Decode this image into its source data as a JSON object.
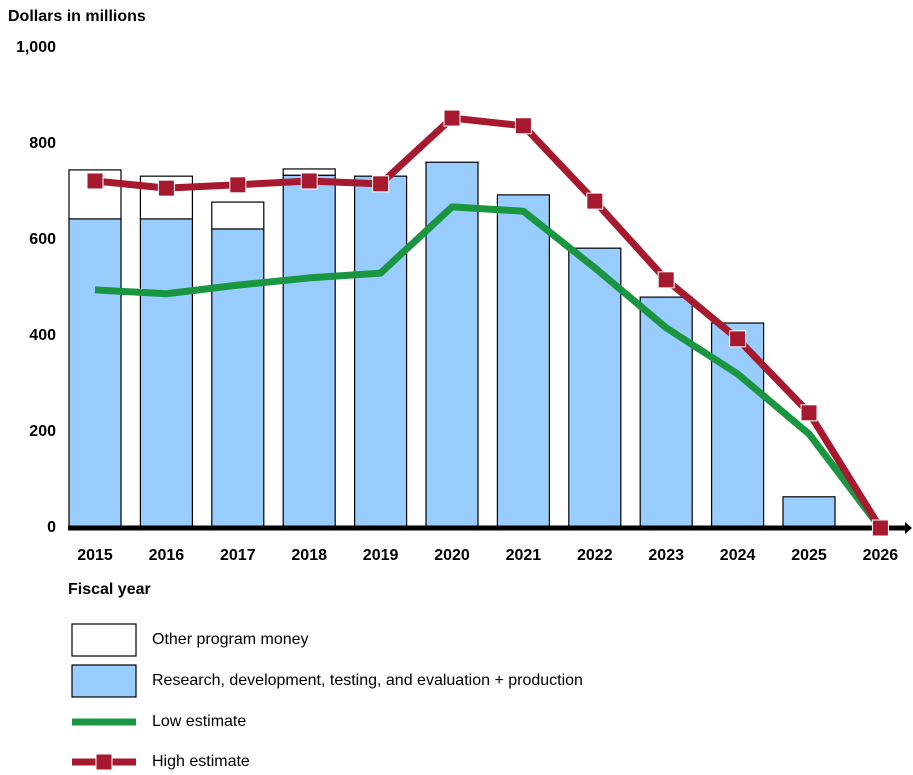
{
  "chart_data": {
    "type": "bar",
    "y_axis_label": "Dollars in millions",
    "x_axis_label": "Fiscal year",
    "categories": [
      "2015",
      "2016",
      "2017",
      "2018",
      "2019",
      "2020",
      "2021",
      "2022",
      "2023",
      "2024",
      "2025",
      "2026"
    ],
    "series": [
      {
        "name": "Other program money",
        "type": "bar",
        "color": "#ffffff",
        "values": [
          102,
          89,
          56,
          13,
          0,
          0,
          0,
          0,
          0,
          0,
          0,
          0
        ]
      },
      {
        "name": "Research, development, testing, and evaluation + production",
        "type": "bar",
        "color": "#99ccff",
        "values": [
          644,
          644,
          623,
          735,
          733,
          762,
          694,
          583,
          481,
          427,
          65,
          0
        ]
      },
      {
        "name": "Low estimate",
        "type": "line",
        "color": "#1a9641",
        "values": [
          496,
          488,
          506,
          521,
          531,
          669,
          660,
          542,
          417,
          321,
          196,
          0
        ]
      },
      {
        "name": "High estimate",
        "type": "line",
        "color": "#a6192e",
        "marker": "square",
        "values": [
          723,
          708,
          715,
          723,
          717,
          854,
          838,
          681,
          517,
          394,
          240,
          0
        ]
      }
    ],
    "ylim": [
      0,
      1000
    ],
    "yticks": [
      0,
      200,
      400,
      600,
      800,
      {
        "value": 1000,
        "label": "1,000"
      }
    ]
  }
}
